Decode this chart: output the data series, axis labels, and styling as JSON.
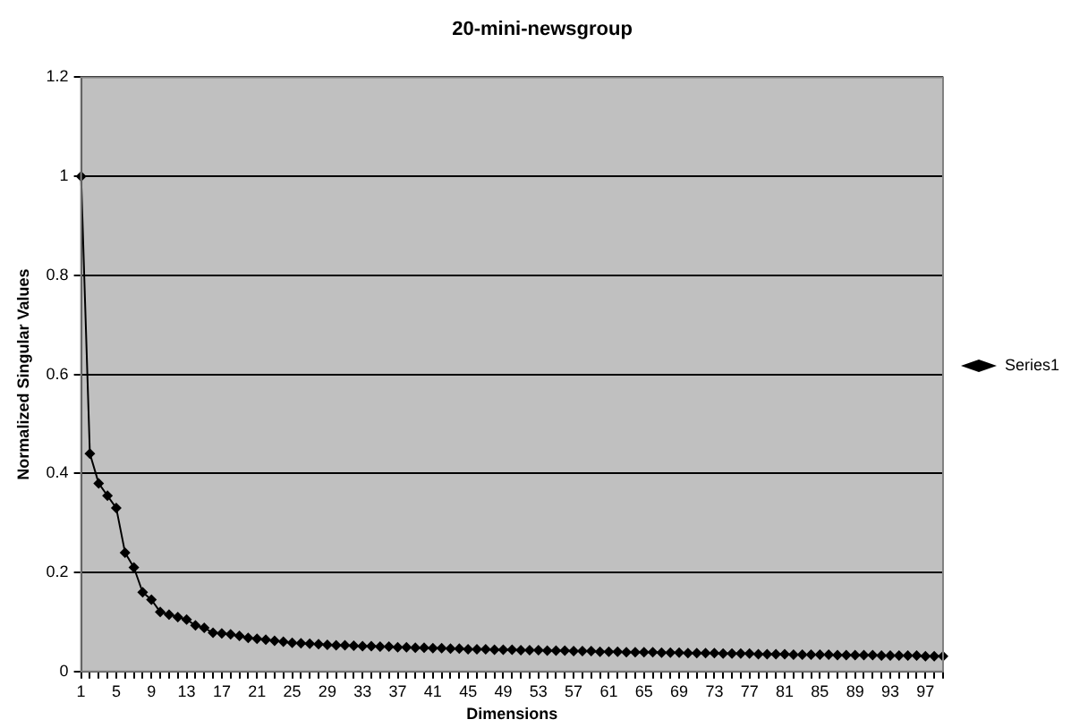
{
  "chart_data": {
    "type": "line",
    "title": "20-mini-newsgroup",
    "xlabel": "Dimensions",
    "ylabel": "Normalized Singular Values",
    "categories": [
      "1",
      null,
      null,
      null,
      "5",
      null,
      null,
      null,
      "9",
      null,
      null,
      null,
      "13",
      null,
      null,
      null,
      "17",
      null,
      null,
      null,
      "21",
      null,
      null,
      null,
      "25",
      null,
      null,
      null,
      "29",
      null,
      null,
      null,
      "33",
      null,
      null,
      null,
      "37",
      null,
      null,
      null,
      "41",
      null,
      null,
      null,
      "45",
      null,
      null,
      null,
      "49",
      null,
      null,
      null,
      "53",
      null,
      null,
      null,
      "57",
      null,
      null,
      null,
      "61",
      null,
      null,
      null,
      "65",
      null,
      null,
      null,
      "69",
      null,
      null,
      null,
      "73",
      null,
      null,
      null,
      "77",
      null,
      null,
      null,
      "81",
      null,
      null,
      null,
      "85",
      null,
      null,
      null,
      "89",
      null,
      null,
      null,
      "93",
      null,
      null,
      null,
      "97",
      null,
      null
    ],
    "series": [
      {
        "name": "Series1",
        "color": "#000000",
        "values": [
          1,
          0.44,
          0.38,
          0.355,
          0.33,
          0.24,
          0.21,
          0.16,
          0.145,
          0.12,
          0.115,
          0.11,
          0.105,
          0.093,
          0.088,
          0.078,
          0.077,
          0.075,
          0.072,
          0.068,
          0.066,
          0.064,
          0.062,
          0.06,
          0.058,
          0.057,
          0.056,
          0.055,
          0.054,
          0.053,
          0.053,
          0.052,
          0.051,
          0.051,
          0.05,
          0.05,
          0.049,
          0.049,
          0.048,
          0.048,
          0.047,
          0.047,
          0.046,
          0.046,
          0.045,
          0.045,
          0.045,
          0.044,
          0.044,
          0.044,
          0.043,
          0.043,
          0.043,
          0.042,
          0.042,
          0.042,
          0.041,
          0.041,
          0.041,
          0.04,
          0.04,
          0.04,
          0.039,
          0.039,
          0.039,
          0.039,
          0.038,
          0.038,
          0.038,
          0.037,
          0.037,
          0.037,
          0.037,
          0.036,
          0.036,
          0.036,
          0.036,
          0.035,
          0.035,
          0.035,
          0.035,
          0.034,
          0.034,
          0.034,
          0.034,
          0.034,
          0.033,
          0.033,
          0.033,
          0.033,
          0.033,
          0.032,
          0.032,
          0.032,
          0.032,
          0.032,
          0.031,
          0.031,
          0.031
        ]
      }
    ],
    "ylim": [
      0,
      1.2
    ],
    "yticks": [
      0,
      0.2,
      0.4,
      0.6,
      0.8,
      1,
      1.2
    ],
    "grid": "y",
    "legend": "right",
    "marker": "diamond",
    "line_style": "solid"
  }
}
